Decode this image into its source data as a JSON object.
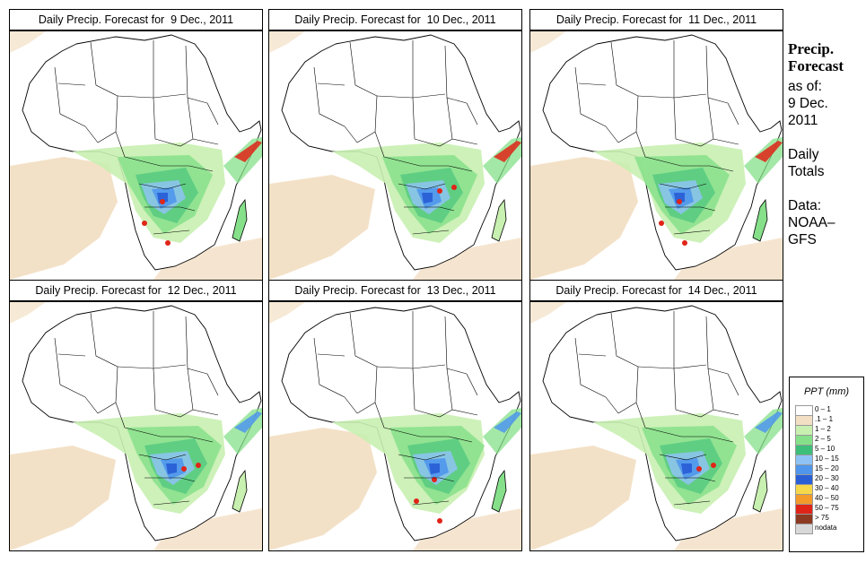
{
  "panels": [
    {
      "title": "Daily Precip. Forecast for  9 Dec., 2011"
    },
    {
      "title": "Daily Precip. Forecast for  10 Dec., 2011"
    },
    {
      "title": "Daily Precip. Forecast for  11 Dec., 2011"
    },
    {
      "title": "Daily Precip. Forecast for  12 Dec., 2011"
    },
    {
      "title": "Daily Precip. Forecast for  13 Dec., 2011"
    },
    {
      "title": "Daily Precip. Forecast for  14 Dec., 2011"
    }
  ],
  "side": {
    "heading1": "Precip.",
    "heading2": "Forecast",
    "asof": "as of:",
    "date1": "9 Dec.",
    "date2": "2011",
    "daily1": "Daily",
    "daily2": "Totals",
    "data1": "Data:",
    "data2": "NOAA–",
    "data3": "GFS"
  },
  "legend": {
    "title": "PPT (mm)",
    "items": [
      {
        "label": "0 – 1",
        "color": "#ffffff"
      },
      {
        "label": ".1 – 1",
        "color": "#f2dfc4"
      },
      {
        "label": "1 – 2",
        "color": "#c8f0b0"
      },
      {
        "label": "2 – 5",
        "color": "#86e08a"
      },
      {
        "label": "5 – 10",
        "color": "#3dbf7a"
      },
      {
        "label": "10 – 15",
        "color": "#8fc3f5"
      },
      {
        "label": "15 – 20",
        "color": "#4f96ec"
      },
      {
        "label": "20 – 30",
        "color": "#2a5fd6"
      },
      {
        "label": "30 – 40",
        "color": "#f7d84a"
      },
      {
        "label": "40 – 50",
        "color": "#f39a2a"
      },
      {
        "label": "50 – 75",
        "color": "#e02418"
      },
      {
        "label": "> 75",
        "color": "#8c3a22"
      },
      {
        "label": "nodata",
        "color": "#d8d8d8"
      }
    ]
  }
}
